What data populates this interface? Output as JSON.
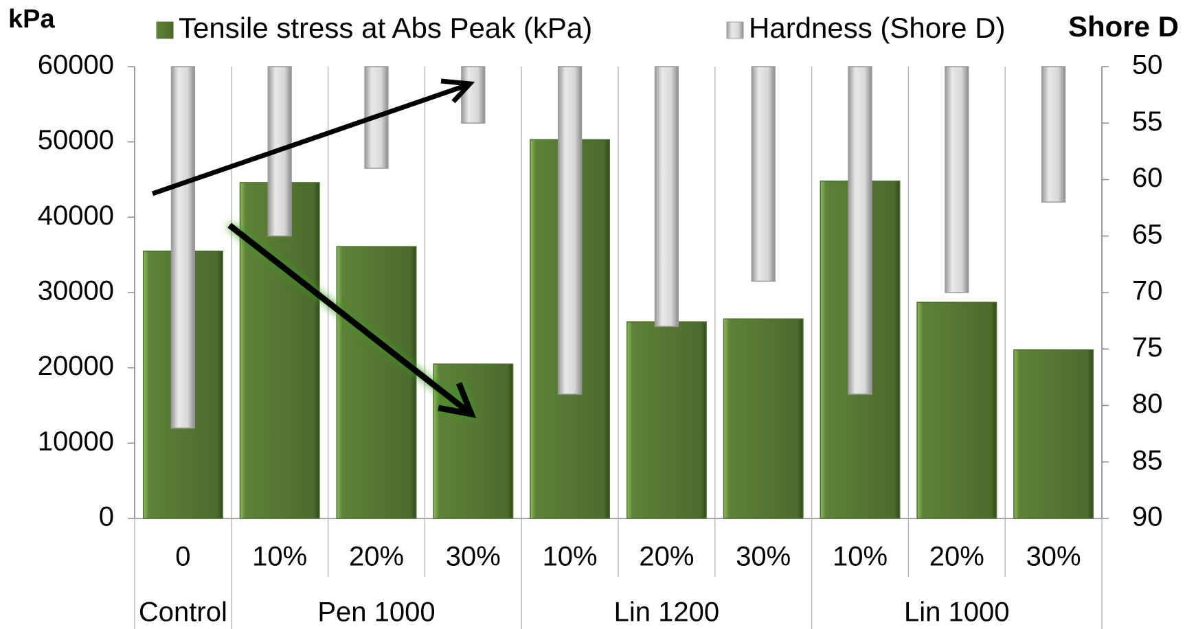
{
  "chart_data": {
    "type": "bar",
    "groups": [
      {
        "name": "Control",
        "categories": [
          "0"
        ]
      },
      {
        "name": "Pen 1000",
        "categories": [
          "10%",
          "20%",
          "30%"
        ]
      },
      {
        "name": "Lin 1200",
        "categories": [
          "10%",
          "20%",
          "30%"
        ]
      },
      {
        "name": "Lin 1000",
        "categories": [
          "10%",
          "20%",
          "30%"
        ]
      }
    ],
    "series": [
      {
        "name": "Tensile stress at Abs Peak (kPa)",
        "color": "#4f6e31",
        "values": [
          35500,
          44600,
          36100,
          20500,
          50300,
          26100,
          26500,
          44800,
          28700,
          22400
        ]
      },
      {
        "name": "Hardness (Shore D)",
        "color": "#c8c8c8",
        "axis": "y2",
        "values": [
          82,
          65,
          59,
          55,
          79,
          73,
          69,
          79,
          70,
          62
        ]
      }
    ],
    "ylabel": "kPa",
    "y2label": "Shore D",
    "ylim": [
      0,
      60000
    ],
    "yticks": [
      0,
      10000,
      20000,
      30000,
      40000,
      50000,
      60000
    ],
    "y2lim": [
      90,
      50
    ],
    "y2ticks": [
      50,
      55,
      60,
      65,
      70,
      75,
      80,
      85,
      90
    ]
  }
}
